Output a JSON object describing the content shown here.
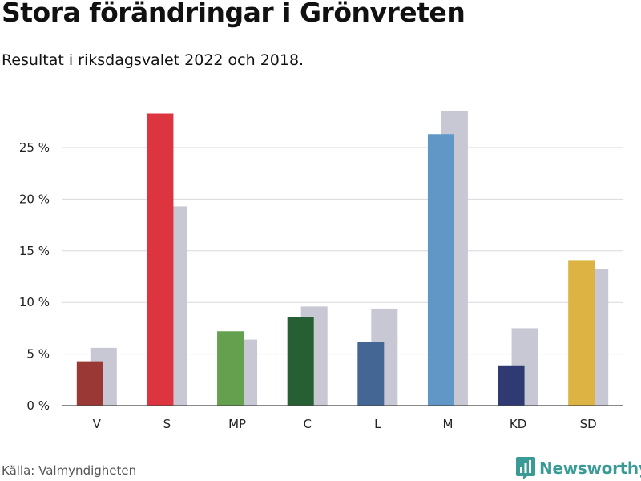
{
  "title": "Stora förändringar i Grönvreten",
  "subtitle": "Resultat i riksdagsvalet 2022 och 2018.",
  "source": "Källa: Valmyndigheten",
  "brand": {
    "name": "Newsworthy",
    "color": "#3a9b96",
    "icon": "bar-chart-icon"
  },
  "chart_data": {
    "type": "bar",
    "categories": [
      "V",
      "S",
      "MP",
      "C",
      "L",
      "M",
      "KD",
      "SD"
    ],
    "series": [
      {
        "values": [
          4.3,
          28.3,
          7.2,
          8.6,
          6.2,
          26.3,
          3.9,
          14.1
        ]
      },
      {
        "values": [
          5.6,
          19.3,
          6.4,
          9.6,
          9.4,
          28.5,
          7.5,
          13.2
        ]
      }
    ],
    "colors_2022": [
      "#993835",
      "#dc3540",
      "#64a04e",
      "#265f33",
      "#436694",
      "#6097c7",
      "#2f3a73",
      "#ddb443"
    ],
    "color_2018": "#c8c7d4",
    "ylim": [
      0,
      30
    ],
    "yticks": [
      0,
      5,
      10,
      15,
      20,
      25
    ],
    "ytick_labels": [
      "0 %",
      "5 %",
      "10 %",
      "15 %",
      "20 %",
      "25 %"
    ],
    "grid": true,
    "xlabel": "",
    "ylabel": ""
  }
}
